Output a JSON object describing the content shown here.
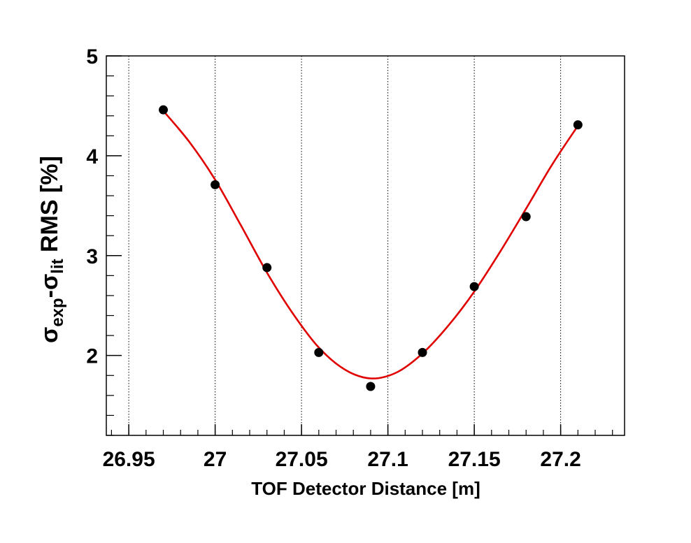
{
  "chart_data": {
    "type": "scatter",
    "xlabel": "TOF Detector Distance [m]",
    "ylabel": {
      "sigma1": "σ",
      "sub1": "exp",
      "dash": "-",
      "sigma2": "σ",
      "sub2": "lit",
      "rest": " RMS [%]"
    },
    "xlim": [
      26.937,
      27.237
    ],
    "ylim": [
      1.2,
      5.0
    ],
    "x_ticks": [
      26.95,
      27.0,
      27.05,
      27.1,
      27.15,
      27.2
    ],
    "x_tick_labels": [
      "26.95",
      "27",
      "27.05",
      "27.1",
      "27.15",
      "27.2"
    ],
    "y_ticks": [
      2,
      3,
      4,
      5
    ],
    "y_tick_labels": [
      "2",
      "3",
      "4",
      "5"
    ],
    "grid": "vertical dotted",
    "series": [
      {
        "type": "scatter",
        "color": "#000000",
        "points": [
          {
            "x": 26.97,
            "y": 4.46
          },
          {
            "x": 27.0,
            "y": 3.71
          },
          {
            "x": 27.03,
            "y": 2.88
          },
          {
            "x": 27.06,
            "y": 2.03
          },
          {
            "x": 27.09,
            "y": 1.69
          },
          {
            "x": 27.12,
            "y": 2.03
          },
          {
            "x": 27.15,
            "y": 2.69
          },
          {
            "x": 27.18,
            "y": 3.39
          },
          {
            "x": 27.21,
            "y": 4.31
          }
        ]
      },
      {
        "type": "line",
        "color": "#e00000",
        "points": [
          {
            "x": 26.97,
            "y": 4.45
          },
          {
            "x": 26.985,
            "y": 4.14
          },
          {
            "x": 27.0,
            "y": 3.76
          },
          {
            "x": 27.015,
            "y": 3.3
          },
          {
            "x": 27.03,
            "y": 2.83
          },
          {
            "x": 27.045,
            "y": 2.42
          },
          {
            "x": 27.06,
            "y": 2.08
          },
          {
            "x": 27.075,
            "y": 1.86
          },
          {
            "x": 27.09,
            "y": 1.77
          },
          {
            "x": 27.105,
            "y": 1.83
          },
          {
            "x": 27.12,
            "y": 2.02
          },
          {
            "x": 27.135,
            "y": 2.3
          },
          {
            "x": 27.15,
            "y": 2.64
          },
          {
            "x": 27.165,
            "y": 3.04
          },
          {
            "x": 27.18,
            "y": 3.47
          },
          {
            "x": 27.195,
            "y": 3.91
          },
          {
            "x": 27.21,
            "y": 4.3
          }
        ]
      }
    ]
  }
}
